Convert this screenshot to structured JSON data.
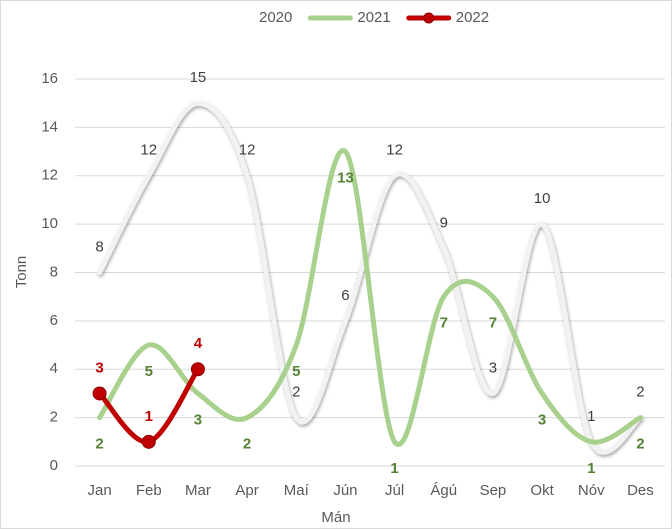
{
  "chart_data": {
    "type": "line",
    "x_label": "Mán",
    "y_label": "Tonn",
    "categories": [
      "Jan",
      "Feb",
      "Mar",
      "Apr",
      "Maí",
      "Jún",
      "Júl",
      "Ágú",
      "Sep",
      "Okt",
      "Nóv",
      "Des"
    ],
    "series": [
      {
        "name": "2020",
        "color": "#f2f2f2",
        "label_color": "#404040",
        "label_weight": "normal",
        "label_side": "above",
        "marker": false,
        "values": [
          8,
          12,
          15,
          12,
          2,
          6,
          12,
          9,
          3,
          10,
          1,
          2
        ]
      },
      {
        "name": "2021",
        "color": "#a9d18e",
        "label_color": "#548235",
        "label_weight": "bold",
        "label_side": "below",
        "marker": false,
        "values": [
          2,
          5,
          3,
          2,
          5,
          13,
          1,
          7,
          7,
          3,
          1,
          2
        ]
      },
      {
        "name": "2022",
        "color": "#c00000",
        "label_color": "#c00000",
        "label_weight": "bold",
        "label_side": "above",
        "marker": true,
        "values": [
          3,
          1,
          4,
          null,
          null,
          null,
          null,
          null,
          null,
          null,
          null,
          null
        ]
      }
    ],
    "ylim": [
      0,
      16
    ],
    "yticks": [
      0,
      2,
      4,
      6,
      8,
      10,
      12,
      14,
      16
    ],
    "grid": true,
    "smooth": true,
    "legend": "top"
  }
}
